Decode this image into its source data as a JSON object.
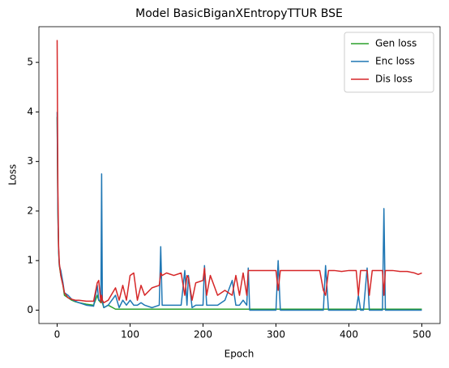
{
  "chart_data": {
    "type": "line",
    "title": "Model BasicBiganXEntropyTTUR BSE",
    "xlabel": "Epoch",
    "ylabel": "Loss",
    "x": [
      0,
      1,
      2,
      3,
      5,
      8,
      10,
      15,
      20,
      25,
      30,
      40,
      50,
      55,
      57,
      60,
      61,
      62,
      64,
      70,
      80,
      85,
      90,
      95,
      100,
      105,
      110,
      115,
      120,
      130,
      140,
      142,
      144,
      150,
      160,
      170,
      175,
      178,
      180,
      185,
      190,
      200,
      202,
      205,
      210,
      220,
      230,
      240,
      245,
      250,
      255,
      260,
      262,
      264,
      270,
      280,
      290,
      300,
      303,
      306,
      310,
      320,
      330,
      340,
      350,
      360,
      365,
      368,
      372,
      375,
      380,
      390,
      400,
      410,
      413,
      416,
      420,
      425,
      428,
      432,
      440,
      446,
      448,
      450,
      455,
      460,
      470,
      480,
      490,
      495,
      500
    ],
    "series": [
      {
        "name": "Gen loss",
        "color": "#2ca02c",
        "values": [
          3.9,
          2.0,
          1.2,
          0.9,
          0.7,
          0.5,
          0.3,
          0.25,
          0.2,
          0.17,
          0.15,
          0.12,
          0.1,
          0.3,
          0.2,
          0.15,
          0.2,
          0.15,
          0.05,
          0.1,
          0.02,
          0.02,
          0.02,
          0.02,
          0.02,
          0.02,
          0.02,
          0.02,
          0.02,
          0.02,
          0.02,
          0.02,
          0.02,
          0.02,
          0.02,
          0.02,
          0.02,
          0.02,
          0.02,
          0.02,
          0.02,
          0.02,
          0.02,
          0.02,
          0.02,
          0.02,
          0.02,
          0.02,
          0.02,
          0.02,
          0.02,
          0.02,
          0.02,
          0.02,
          0.02,
          0.02,
          0.02,
          0.02,
          0.02,
          0.02,
          0.02,
          0.02,
          0.02,
          0.02,
          0.02,
          0.02,
          0.02,
          0.02,
          0.02,
          0.02,
          0.02,
          0.02,
          0.02,
          0.02,
          0.02,
          0.02,
          0.02,
          0.02,
          0.02,
          0.02,
          0.02,
          0.02,
          0.02,
          0.02,
          0.02,
          0.02,
          0.02,
          0.02,
          0.02,
          0.02,
          0.02
        ]
      },
      {
        "name": "Enc loss",
        "color": "#1f77b4",
        "values": [
          4.0,
          2.0,
          1.2,
          0.9,
          0.8,
          0.55,
          0.35,
          0.3,
          0.22,
          0.18,
          0.15,
          0.1,
          0.08,
          0.5,
          0.2,
          0.2,
          2.75,
          0.2,
          0.05,
          0.1,
          0.3,
          0.05,
          0.2,
          0.1,
          0.2,
          0.1,
          0.1,
          0.15,
          0.1,
          0.05,
          0.1,
          1.28,
          0.1,
          0.1,
          0.1,
          0.1,
          0.8,
          0.1,
          0.7,
          0.05,
          0.1,
          0.1,
          0.9,
          0.1,
          0.1,
          0.1,
          0.2,
          0.6,
          0.1,
          0.1,
          0.2,
          0.1,
          0.85,
          0.0,
          0.0,
          0.0,
          0.0,
          0.0,
          1.0,
          0.0,
          0.0,
          0.0,
          0.0,
          0.0,
          0.0,
          0.0,
          0.0,
          0.9,
          0.0,
          0.0,
          0.0,
          0.0,
          0.0,
          0.0,
          0.3,
          0.0,
          0.0,
          0.85,
          0.0,
          0.0,
          0.0,
          0.0,
          2.05,
          0.0,
          0.0,
          0.0,
          0.0,
          0.0,
          0.0,
          0.0,
          0.0
        ]
      },
      {
        "name": "Dis loss",
        "color": "#d62728",
        "values": [
          5.45,
          2.5,
          1.3,
          0.95,
          0.7,
          0.5,
          0.35,
          0.25,
          0.22,
          0.2,
          0.2,
          0.18,
          0.18,
          0.55,
          0.6,
          0.15,
          0.3,
          0.2,
          0.15,
          0.2,
          0.45,
          0.2,
          0.5,
          0.2,
          0.7,
          0.75,
          0.2,
          0.5,
          0.3,
          0.45,
          0.5,
          0.75,
          0.7,
          0.75,
          0.7,
          0.75,
          0.3,
          0.7,
          0.65,
          0.2,
          0.55,
          0.6,
          0.85,
          0.3,
          0.7,
          0.3,
          0.4,
          0.3,
          0.7,
          0.3,
          0.75,
          0.3,
          0.8,
          0.8,
          0.8,
          0.8,
          0.8,
          0.8,
          0.4,
          0.8,
          0.8,
          0.8,
          0.8,
          0.8,
          0.8,
          0.8,
          0.4,
          0.3,
          0.8,
          0.8,
          0.8,
          0.78,
          0.8,
          0.8,
          0.3,
          0.8,
          0.8,
          0.8,
          0.3,
          0.8,
          0.8,
          0.8,
          0.3,
          0.8,
          0.8,
          0.8,
          0.78,
          0.78,
          0.75,
          0.72,
          0.75
        ]
      }
    ],
    "xlim": [
      -25,
      525
    ],
    "xticks": [
      0,
      100,
      200,
      300,
      400,
      500
    ],
    "ylim": [
      -0.27,
      5.72
    ],
    "yticks": [
      0,
      1,
      2,
      3,
      4,
      5
    ],
    "legend": "upper right",
    "grid": false
  }
}
